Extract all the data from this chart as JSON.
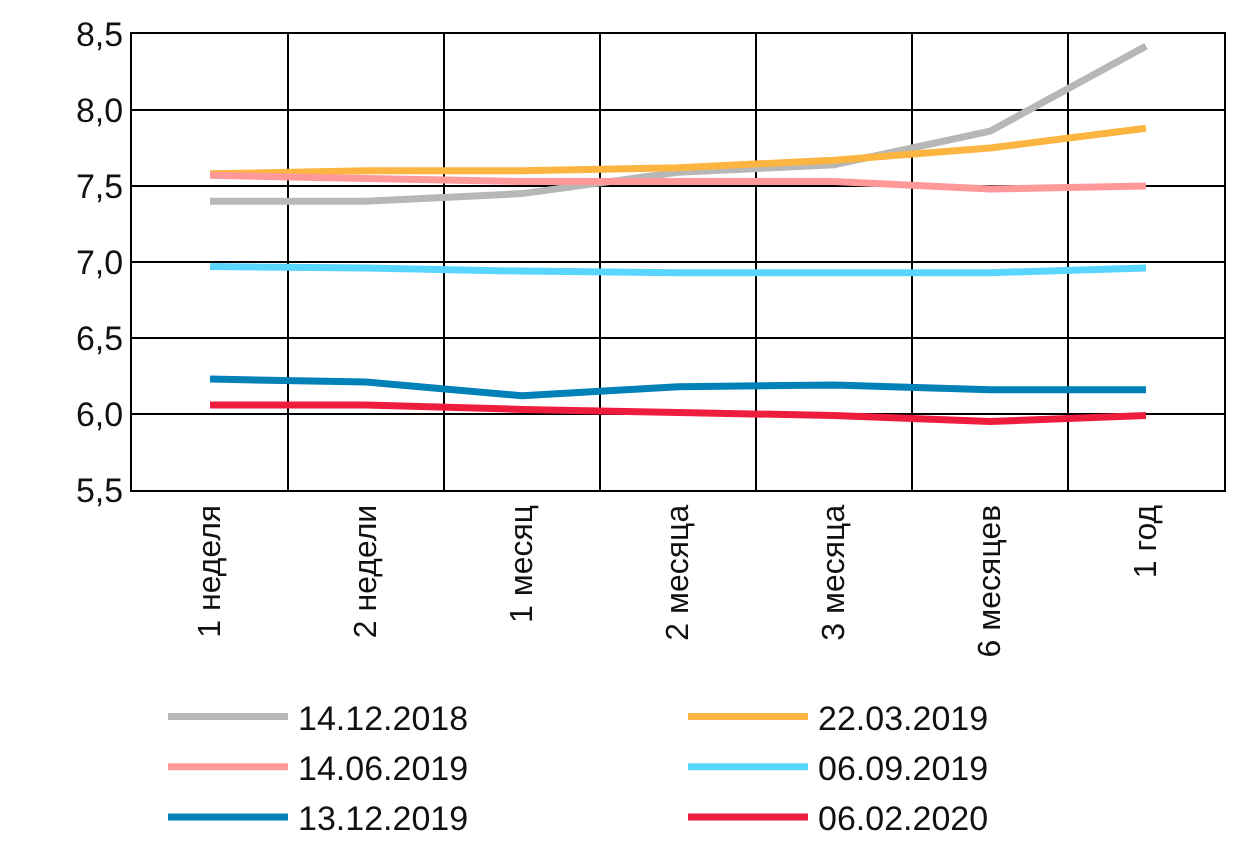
{
  "chart_data": {
    "type": "line",
    "categories": [
      "1 неделя",
      "2 недели",
      "1 месяц",
      "2 месяца",
      "3 месяца",
      "6 месяцев",
      "1 год"
    ],
    "ylim": [
      5.5,
      8.5
    ],
    "yticks": [
      {
        "value": 5.5,
        "label": "5,5"
      },
      {
        "value": 6,
        "label": "6,0"
      },
      {
        "value": 6.5,
        "label": "6,5"
      },
      {
        "value": 7,
        "label": "7,0"
      },
      {
        "value": 7.5,
        "label": "7,5"
      },
      {
        "value": 8,
        "label": "8,0"
      },
      {
        "value": 8.5,
        "label": "8,5"
      }
    ],
    "grid": true,
    "legend": "bottom",
    "marker": "none",
    "line_style": "solid",
    "series": [
      {
        "name": "14.12.2018",
        "color": "#b7b7b7",
        "values": [
          7.4,
          7.4,
          7.45,
          7.59,
          7.64,
          7.86,
          8.42
        ]
      },
      {
        "name": "22.03.2019",
        "color": "#fbb540",
        "values": [
          7.58,
          7.6,
          7.6,
          7.62,
          7.67,
          7.75,
          7.88
        ]
      },
      {
        "name": "14.06.2019",
        "color": "#ff9999",
        "values": [
          7.57,
          7.55,
          7.53,
          7.53,
          7.53,
          7.48,
          7.5
        ]
      },
      {
        "name": "06.09.2019",
        "color": "#59d6ff",
        "values": [
          6.97,
          6.96,
          6.94,
          6.93,
          6.93,
          6.93,
          6.96
        ]
      },
      {
        "name": "13.12.2019",
        "color": "#0082b9",
        "values": [
          6.23,
          6.21,
          6.12,
          6.18,
          6.19,
          6.16,
          6.16
        ]
      },
      {
        "name": "06.02.2020",
        "color": "#ee1c3d",
        "values": [
          6.06,
          6.06,
          6.03,
          6.01,
          5.99,
          5.95,
          5.99
        ]
      }
    ]
  }
}
